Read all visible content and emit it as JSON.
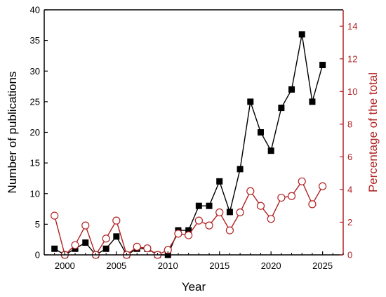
{
  "chart_data": {
    "type": "line",
    "title": "",
    "xlabel": "Year",
    "ylabel_left": "Number of publications",
    "ylabel_right": "Percentage of the total",
    "xlim": [
      1998,
      2027
    ],
    "ylim_left": [
      0,
      40
    ],
    "ylim_right": [
      0,
      15
    ],
    "x_ticks": [
      2000,
      2005,
      2010,
      2015,
      2020,
      2025
    ],
    "y_left_ticks": [
      0,
      5,
      10,
      15,
      20,
      25,
      30,
      35,
      40
    ],
    "y_right_ticks": [
      0,
      2,
      4,
      6,
      8,
      10,
      12,
      14
    ],
    "grid": false,
    "legend": "none",
    "colors": {
      "left_axis": "#000000",
      "right_axis": "#b22222",
      "publications": "#000000",
      "percentage": "#b22222"
    },
    "x": [
      1999,
      2000,
      2001,
      2002,
      2003,
      2004,
      2005,
      2006,
      2007,
      2008,
      2009,
      2010,
      2011,
      2012,
      2013,
      2014,
      2015,
      2016,
      2017,
      2018,
      2019,
      2020,
      2021,
      2022,
      2023,
      2024,
      2025
    ],
    "series": [
      {
        "axis": "left",
        "marker": "filled-square",
        "values": [
          1,
          0,
          1,
          2,
          0,
          1,
          3,
          0,
          1,
          1,
          0,
          0,
          4,
          4,
          8,
          8,
          12,
          7,
          14,
          25,
          20,
          17,
          24,
          27,
          36,
          25,
          31
        ]
      },
      {
        "axis": "right",
        "marker": "open-circle",
        "values": [
          2.4,
          0.0,
          0.6,
          1.8,
          0.0,
          1.0,
          2.1,
          0.0,
          0.5,
          0.4,
          0.0,
          0.3,
          1.3,
          1.2,
          2.1,
          1.8,
          2.6,
          1.5,
          2.6,
          3.9,
          3.0,
          2.2,
          3.5,
          3.6,
          4.5,
          3.1,
          4.2
        ]
      }
    ]
  }
}
